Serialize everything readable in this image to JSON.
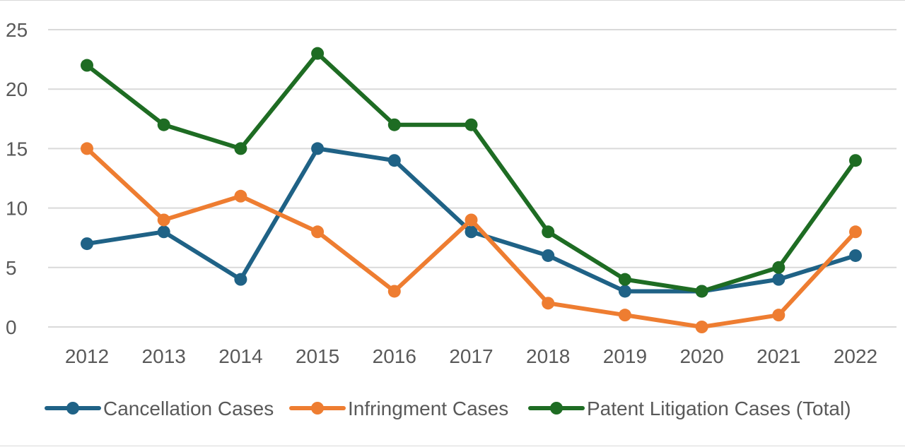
{
  "chart_data": {
    "type": "line",
    "title": "",
    "xlabel": "",
    "ylabel": "",
    "x": [
      "2012",
      "2013",
      "2014",
      "2015",
      "2016",
      "2017",
      "2018",
      "2019",
      "2020",
      "2021",
      "2022"
    ],
    "ylim": [
      0,
      25
    ],
    "yticks": [
      0,
      5,
      10,
      15,
      20,
      25
    ],
    "grid": true,
    "legend_position": "bottom",
    "series": [
      {
        "name": "Cancellation Cases",
        "color": "#1f6286",
        "values": [
          7,
          8,
          4,
          15,
          14,
          8,
          6,
          3,
          3,
          4,
          6
        ]
      },
      {
        "name": "Infringment Cases",
        "color": "#ee7d31",
        "values": [
          15,
          9,
          11,
          8,
          3,
          9,
          2,
          1,
          0,
          1,
          8
        ]
      },
      {
        "name": "Patent Litigation Cases (Total)",
        "color": "#1e6c23",
        "values": [
          22,
          17,
          15,
          23,
          17,
          17,
          8,
          4,
          3,
          5,
          14
        ]
      }
    ]
  }
}
